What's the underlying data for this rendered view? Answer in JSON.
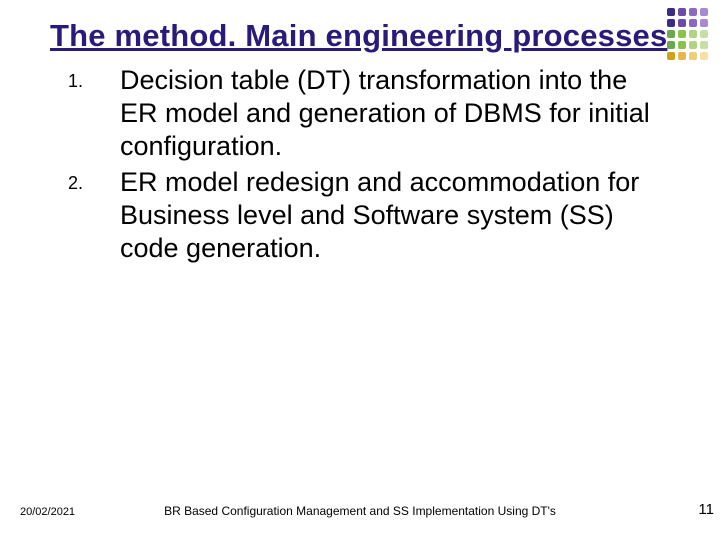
{
  "title_color": "#2a1a7a",
  "title": "The method. Main engineering processes",
  "list": [
    {
      "num": "1.",
      "text": "Decision table (DT) transformation into the ER model and generation of DBMS for initial configuration."
    },
    {
      "num": "2.",
      "text": "ER model redesign and accommodation for  Business level and Software system (SS) code generation."
    }
  ],
  "footer": {
    "date": "20/02/2021",
    "title": "BR Based Configuration Management and SS Implementation Using DT's",
    "page": "11"
  },
  "deco_colors": [
    "#3a2a8a",
    "#6a4aaa",
    "#8a6abf",
    "#a88ad0",
    "#3a2a8a",
    "#6a4aaa",
    "#8a6abf",
    "#a88ad0",
    "#6aa84f",
    "#8bc34a",
    "#aed581",
    "#c5e1a5",
    "#6aa84f",
    "#8bc34a",
    "#aed581",
    "#c5e1a5",
    "#d4a017",
    "#e6b84c",
    "#f0cd7a",
    "#f7e0a8"
  ]
}
